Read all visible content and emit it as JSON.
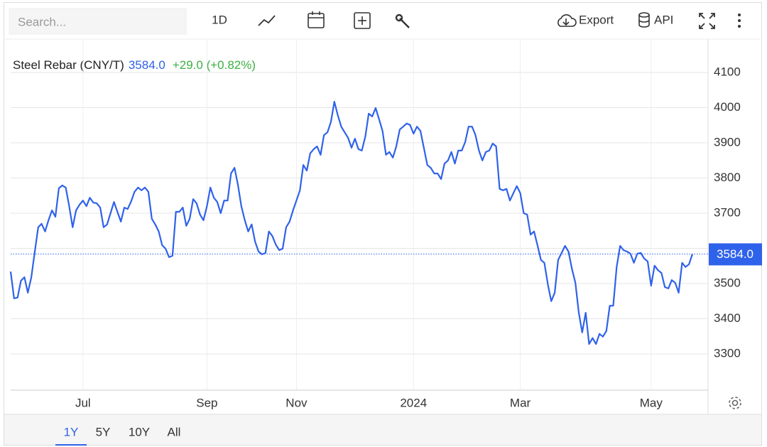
{
  "toolbar": {
    "search_placeholder": "Search...",
    "interval": "1D",
    "export": "Export",
    "api": "API"
  },
  "range_buttons": [
    "1Y",
    "5Y",
    "10Y",
    "All"
  ],
  "chart_data": {
    "type": "line",
    "title": "Steel Rebar (CNY/T)",
    "last_label": "3584.0",
    "change_label": "+29.0 (+0.82%)",
    "color": "#2f62ea",
    "ylim": [
      3200,
      4200
    ],
    "yticks": [
      3300,
      3400,
      3500,
      3600,
      3700,
      3800,
      3900,
      4000,
      4100
    ],
    "grid": true,
    "categories": [
      null,
      null,
      null,
      null,
      null,
      null,
      null,
      null,
      null,
      null,
      null,
      null,
      null,
      null,
      null,
      null,
      null,
      null,
      null,
      null,
      null,
      "Jul",
      null,
      null,
      null,
      null,
      null,
      null,
      null,
      null,
      null,
      null,
      null,
      null,
      null,
      null,
      null,
      null,
      null,
      null,
      null,
      null,
      null,
      null,
      null,
      null,
      null,
      null,
      null,
      null,
      null,
      null,
      null,
      null,
      null,
      null,
      null,
      "Sep",
      null,
      null,
      null,
      null,
      null,
      null,
      null,
      null,
      null,
      null,
      null,
      null,
      null,
      null,
      null,
      null,
      null,
      null,
      null,
      null,
      null,
      null,
      null,
      null,
      null,
      "Nov",
      null,
      null,
      null,
      null,
      null,
      null,
      null,
      null,
      null,
      null,
      null,
      null,
      null,
      null,
      null,
      null,
      null,
      null,
      null,
      null,
      null,
      null,
      null,
      null,
      null,
      null,
      null,
      null,
      null,
      null,
      null,
      null,
      null,
      "2024",
      null,
      null,
      null,
      null,
      null,
      null,
      null,
      null,
      null,
      null,
      null,
      null,
      null,
      null,
      null,
      null,
      null,
      null,
      null,
      null,
      null,
      null,
      null,
      null,
      null,
      null,
      null,
      null,
      null,
      null,
      "Mar",
      null,
      null,
      null,
      null,
      null,
      null,
      null,
      null,
      null,
      null,
      null,
      null,
      null,
      null,
      null,
      null,
      null,
      null,
      null,
      null,
      null,
      null,
      null,
      null,
      null,
      null,
      null,
      null,
      null,
      null,
      null,
      null,
      null,
      null,
      null,
      null,
      null,
      "May",
      null,
      null,
      null,
      null,
      null,
      null,
      null,
      null,
      null,
      null,
      null,
      null
    ],
    "values": [
      3534,
      3458,
      3460,
      3508,
      3518,
      3474,
      3518,
      3589,
      3660,
      3670,
      3648,
      3680,
      3708,
      3690,
      3771,
      3779,
      3773,
      3720,
      3660,
      3708,
      3724,
      3736,
      3720,
      3744,
      3730,
      3728,
      3716,
      3660,
      3668,
      3700,
      3732,
      3704,
      3676,
      3716,
      3712,
      3734,
      3761,
      3773,
      3765,
      3773,
      3761,
      3684,
      3668,
      3648,
      3609,
      3599,
      3575,
      3579,
      3704,
      3704,
      3716,
      3664,
      3684,
      3740,
      3728,
      3696,
      3680,
      3720,
      3773,
      3744,
      3732,
      3700,
      3736,
      3736,
      3813,
      3829,
      3781,
      3720,
      3680,
      3648,
      3668,
      3619,
      3591,
      3583,
      3587,
      3648,
      3635,
      3611,
      3595,
      3599,
      3660,
      3676,
      3708,
      3736,
      3765,
      3837,
      3821,
      3870,
      3882,
      3890,
      3866,
      3922,
      3930,
      3959,
      4017,
      3979,
      3946,
      3930,
      3914,
      3886,
      3912,
      3882,
      3878,
      3918,
      3983,
      3975,
      3999,
      3967,
      3934,
      3866,
      3874,
      3858,
      3890,
      3938,
      3946,
      3955,
      3951,
      3926,
      3946,
      3934,
      3886,
      3837,
      3829,
      3813,
      3813,
      3797,
      3841,
      3850,
      3874,
      3841,
      3878,
      3878,
      3902,
      3946,
      3946,
      3922,
      3878,
      3850,
      3874,
      3878,
      3898,
      3890,
      3769,
      3765,
      3769,
      3736,
      3757,
      3777,
      3757,
      3700,
      3696,
      3639,
      3648,
      3609,
      3567,
      3559,
      3498,
      3450,
      3474,
      3567,
      3587,
      3607,
      3591,
      3542,
      3502,
      3417,
      3361,
      3417,
      3328,
      3345,
      3328,
      3357,
      3349,
      3365,
      3437,
      3437,
      3547,
      3607,
      3595,
      3591,
      3585,
      3559,
      3585,
      3587,
      3571,
      3563,
      3494,
      3551,
      3538,
      3530,
      3490,
      3486,
      3510,
      3502,
      3474,
      3559,
      3547,
      3555,
      3584
    ]
  }
}
